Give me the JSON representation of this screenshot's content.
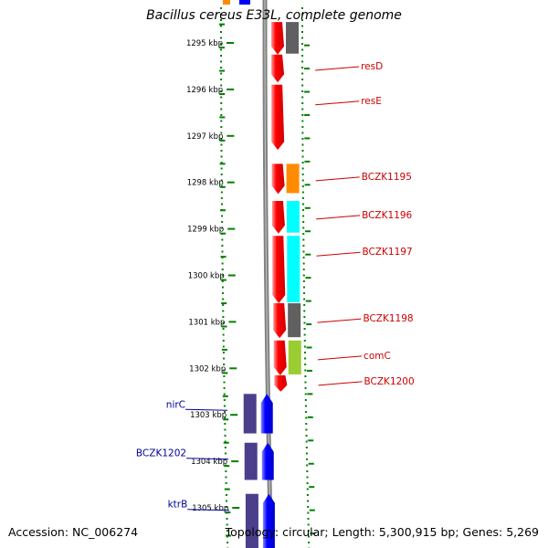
{
  "title": "Bacillus cereus E33L, complete genome",
  "footer": {
    "accession": "Accession: NC_006274",
    "summary": "Topology: circular; Length: 5,300,915 bp; Genes: 5,269"
  },
  "colors": {
    "forward_gene": "#ff0000",
    "reverse_gene": "#0000ff",
    "reverse_gene_cog": "#4b3f8c",
    "backbone": "#808080",
    "tick_dots": "#008000",
    "label_forward": "#cc0000",
    "label_reverse": "#000099"
  },
  "chart_data": {
    "type": "genome-map",
    "units": "kbp",
    "scale_range_kbp": [
      1294.6,
      1305.9
    ],
    "ticks_kbp": [
      1295,
      1296,
      1297,
      1298,
      1299,
      1300,
      1301,
      1302,
      1303,
      1304,
      1305
    ],
    "tick_labels": [
      "1295 kbp",
      "1296 kbp",
      "1297 kbp",
      "1298 kbp",
      "1299 kbp",
      "1300 kbp",
      "1301 kbp",
      "1302 kbp",
      "1303 kbp",
      "1304 kbp",
      "1305 kbp"
    ],
    "genes": [
      {
        "label": "",
        "strand": "+",
        "start_kbp": 1294.55,
        "end_kbp": 1295.25,
        "cog_color": "#606060"
      },
      {
        "label": "resD",
        "strand": "+",
        "start_kbp": 1295.25,
        "end_kbp": 1295.85,
        "cog_color": ""
      },
      {
        "label": "resE",
        "strand": "+",
        "start_kbp": 1295.9,
        "end_kbp": 1297.3,
        "cog_color": ""
      },
      {
        "label": "BCZK1195",
        "strand": "+",
        "start_kbp": 1297.6,
        "end_kbp": 1298.25,
        "cog_color": "#ff8c00"
      },
      {
        "label": "BCZK1196",
        "strand": "+",
        "start_kbp": 1298.4,
        "end_kbp": 1299.1,
        "cog_color": "#00ffff"
      },
      {
        "label": "BCZK1197",
        "strand": "+",
        "start_kbp": 1299.15,
        "end_kbp": 1300.6,
        "cog_color": "#00ffff"
      },
      {
        "label": "BCZK1198",
        "strand": "+",
        "start_kbp": 1300.6,
        "end_kbp": 1301.35,
        "cog_color": "#606060"
      },
      {
        "label": "comC",
        "strand": "+",
        "start_kbp": 1301.4,
        "end_kbp": 1302.15,
        "cog_color": "#9acd32"
      },
      {
        "label": "BCZK1200",
        "strand": "+",
        "start_kbp": 1302.15,
        "end_kbp": 1302.5,
        "cog_color": ""
      },
      {
        "label": "nirC",
        "strand": "-",
        "start_kbp": 1302.55,
        "end_kbp": 1303.4,
        "cog_color": "#4b3f8c"
      },
      {
        "label": "BCZK1202",
        "strand": "-",
        "start_kbp": 1303.6,
        "end_kbp": 1304.4,
        "cog_color": "#4b3f8c"
      },
      {
        "label": "ktrB",
        "strand": "-",
        "start_kbp": 1304.7,
        "end_kbp": 1306.0,
        "cog_color": "#4b3f8c"
      }
    ]
  }
}
